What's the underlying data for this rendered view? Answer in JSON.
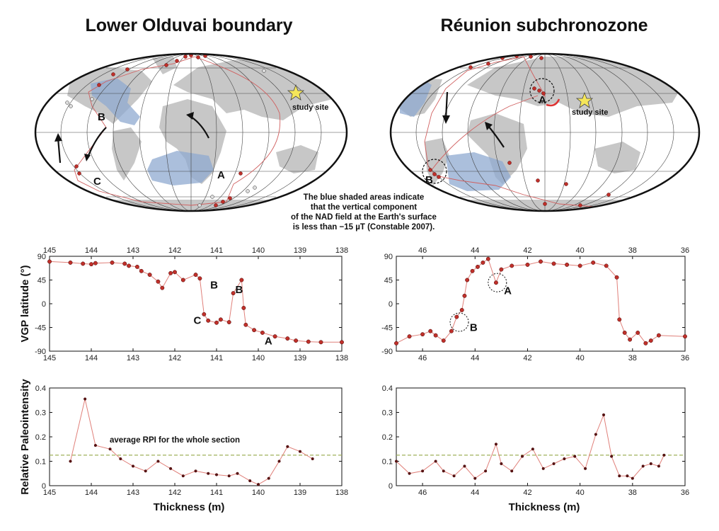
{
  "titles": {
    "left": "Lower Olduvai boundary",
    "right": "Réunion subchronozone"
  },
  "note": [
    "The blue shaded areas indicate",
    "that the vertical component",
    "of the NAD field at the Earth's surface",
    "is less than −15 µT (Constable 2007)."
  ],
  "map_labels": {
    "left": {
      "A": "A",
      "B": "B",
      "C": "C",
      "site": "study site"
    },
    "right": {
      "A": "A",
      "B": "B",
      "site": "study site"
    }
  },
  "colors": {
    "data": "#c0302a",
    "line": "#e0807a",
    "land": "#c7c7c7",
    "blue": "#8faad0",
    "avg": "#9fb05a"
  },
  "axis_labels": {
    "vgp": "VGP latitude (°)",
    "rpi": "Relative Paleointensity",
    "thickness": "Thickness (m)"
  },
  "avg_label": "average RPI for the whole section",
  "chart_data": [
    {
      "id": "left-vgp",
      "type": "line",
      "ylabel": "VGP latitude (°)",
      "xlim": [
        145,
        138
      ],
      "ylim": [
        -90,
        90
      ],
      "xticks": [
        145,
        144,
        143,
        142,
        141,
        140,
        139,
        138
      ],
      "yticks": [
        90,
        45,
        0,
        -45,
        -90
      ],
      "x": [
        145,
        144.5,
        144.2,
        144.0,
        143.9,
        143.5,
        143.2,
        143.1,
        142.9,
        142.8,
        142.6,
        142.4,
        142.3,
        142.1,
        142.0,
        141.8,
        141.5,
        141.4,
        141.3,
        141.2,
        141.0,
        140.9,
        140.7,
        140.6,
        140.4,
        140.35,
        140.3,
        140.1,
        139.9,
        139.6,
        139.3,
        139.1,
        138.8,
        138.5,
        138.0
      ],
      "y": [
        80,
        78,
        76,
        75,
        77,
        78,
        76,
        72,
        70,
        62,
        55,
        42,
        30,
        58,
        60,
        45,
        55,
        48,
        -20,
        -32,
        -36,
        -30,
        -35,
        20,
        45,
        -8,
        -40,
        -50,
        -55,
        -62,
        -66,
        -70,
        -72,
        -73,
        -73
      ],
      "labels": [
        {
          "text": "B",
          "x": 141.15,
          "y": 29
        },
        {
          "text": "B",
          "x": 140.55,
          "y": 20
        },
        {
          "text": "C",
          "x": 141.55,
          "y": -38
        },
        {
          "text": "A",
          "x": 139.85,
          "y": -77
        }
      ]
    },
    {
      "id": "right-vgp",
      "type": "line",
      "ylabel": "",
      "xlim": [
        47,
        36
      ],
      "ylim": [
        -90,
        90
      ],
      "xticks": [
        46,
        44,
        42,
        40,
        38,
        36
      ],
      "yticks": [
        90,
        45,
        0,
        -45,
        -90
      ],
      "x": [
        47,
        46.5,
        46.0,
        45.7,
        45.5,
        45.2,
        44.9,
        44.7,
        44.5,
        44.4,
        44.3,
        44.1,
        43.9,
        43.7,
        43.5,
        43.2,
        43.0,
        42.6,
        42.0,
        41.5,
        41.0,
        40.5,
        40.0,
        39.5,
        39.0,
        38.6,
        38.5,
        38.3,
        38.1,
        37.8,
        37.5,
        37.3,
        37.0,
        36.0
      ],
      "y": [
        -75,
        -62,
        -58,
        -52,
        -60,
        -70,
        -52,
        -25,
        -12,
        15,
        45,
        62,
        70,
        78,
        85,
        40,
        65,
        72,
        74,
        80,
        76,
        74,
        72,
        78,
        72,
        50,
        -30,
        -55,
        -68,
        -55,
        -75,
        -70,
        -60,
        -62
      ],
      "labels": [
        {
          "text": "A",
          "x": 42.9,
          "y": 18
        },
        {
          "text": "B",
          "x": 44.2,
          "y": -52
        }
      ],
      "circles": [
        {
          "x": 43.15,
          "y": 40
        },
        {
          "x": 44.6,
          "y": -35
        }
      ]
    },
    {
      "id": "left-rpi",
      "type": "line",
      "ylabel": "Relative Paleointensity",
      "xlim": [
        145,
        138
      ],
      "ylim": [
        0,
        0.4
      ],
      "xticks": [
        145,
        144,
        143,
        142,
        141,
        140,
        139,
        138
      ],
      "yticks": [
        0,
        0.1,
        0.2,
        0.3,
        0.4
      ],
      "x": [
        144.5,
        144.15,
        143.9,
        143.55,
        143.3,
        143.0,
        142.7,
        142.4,
        142.1,
        141.8,
        141.5,
        141.2,
        141.0,
        140.7,
        140.5,
        140.2,
        140.0,
        139.75,
        139.5,
        139.3,
        139.0,
        138.7
      ],
      "y": [
        0.1,
        0.355,
        0.165,
        0.15,
        0.11,
        0.08,
        0.06,
        0.1,
        0.07,
        0.04,
        0.06,
        0.05,
        0.045,
        0.04,
        0.05,
        0.02,
        0.005,
        0.03,
        0.1,
        0.16,
        0.14,
        0.11
      ],
      "avg": 0.125
    },
    {
      "id": "right-rpi",
      "type": "line",
      "ylabel": "",
      "xlim": [
        47,
        36
      ],
      "ylim": [
        0,
        0.4
      ],
      "xticks": [
        46,
        44,
        42,
        40,
        38,
        36
      ],
      "yticks": [
        0,
        0.1,
        0.2,
        0.3,
        0.4
      ],
      "x": [
        47,
        46.5,
        46.0,
        45.5,
        45.2,
        44.8,
        44.4,
        44.0,
        43.6,
        43.2,
        43.0,
        42.6,
        42.2,
        41.8,
        41.4,
        41.0,
        40.6,
        40.2,
        39.8,
        39.4,
        39.1,
        38.8,
        38.5,
        38.2,
        38.0,
        37.6,
        37.3,
        37.0,
        36.8
      ],
      "y": [
        0.1,
        0.05,
        0.06,
        0.1,
        0.06,
        0.04,
        0.08,
        0.03,
        0.06,
        0.17,
        0.09,
        0.06,
        0.12,
        0.15,
        0.07,
        0.09,
        0.11,
        0.12,
        0.07,
        0.21,
        0.29,
        0.12,
        0.04,
        0.04,
        0.03,
        0.08,
        0.09,
        0.08,
        0.125
      ],
      "avg": 0.125
    }
  ]
}
